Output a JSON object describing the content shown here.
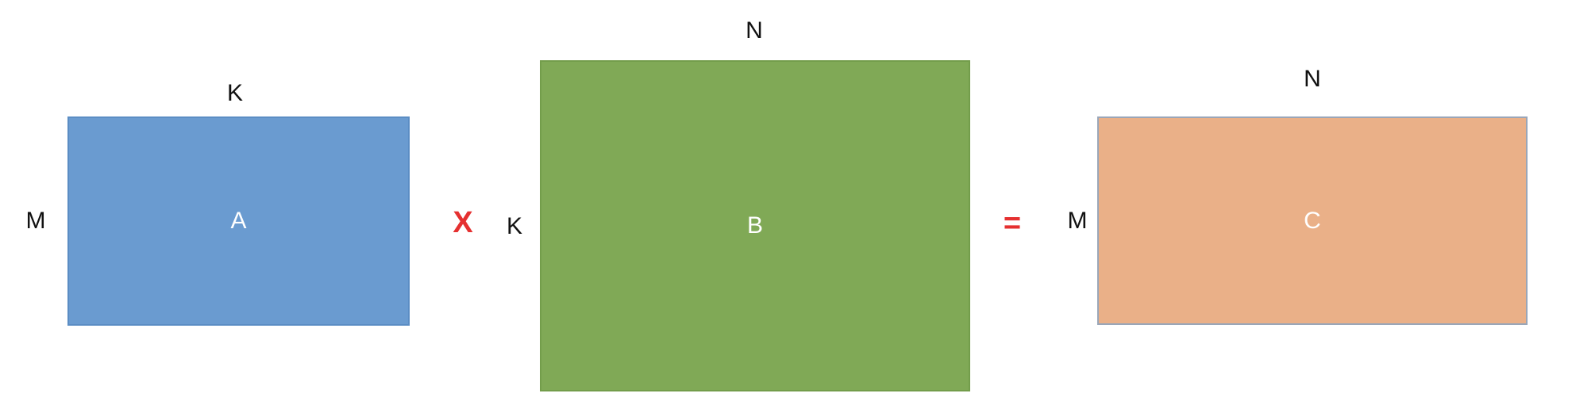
{
  "colors": {
    "matrix_a": "#6a9bd0",
    "matrix_a_border": "#5b8dc4",
    "matrix_b": "#80a956",
    "matrix_b_border": "#739d4b",
    "matrix_c": "#eab088",
    "matrix_c_border": "#9aa6b8",
    "operator": "#e53030"
  },
  "matrix_a": {
    "name": "A",
    "rows_label": "M",
    "cols_label": "K"
  },
  "operator_multiply": "X",
  "matrix_b": {
    "name": "B",
    "rows_label": "K",
    "cols_label": "N"
  },
  "operator_equals": "=",
  "matrix_c": {
    "name": "C",
    "rows_label": "M",
    "cols_label": "N"
  }
}
